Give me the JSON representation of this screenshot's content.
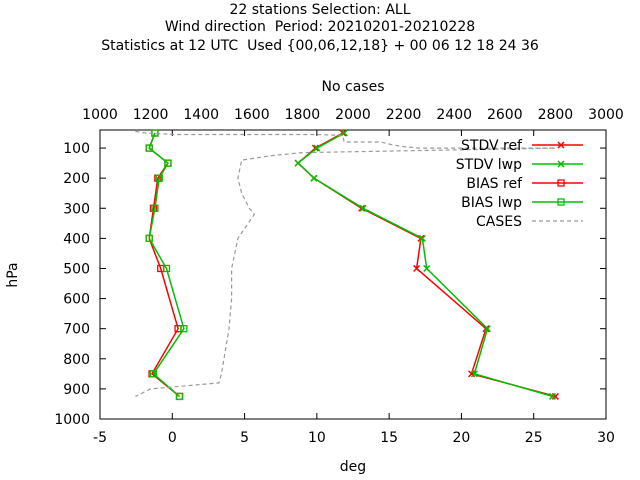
{
  "chart_data": {
    "type": "line",
    "title_lines": [
      "22 stations Selection: ALL",
      "Wind direction  Period: 20210201-20210228",
      "Statistics at 12 UTC  Used {00,06,12,18} + 00 06 12 18 24 36"
    ],
    "xlabel": "deg",
    "ylabel": "hPa",
    "x2label": "No cases",
    "xlim": [
      -5,
      30
    ],
    "ylim": [
      1000,
      40
    ],
    "x2lim": [
      1000,
      3000
    ],
    "xticks": [
      "-5",
      "0",
      "5",
      "10",
      "15",
      "20",
      "25",
      "30"
    ],
    "yticks": [
      "100",
      "200",
      "300",
      "400",
      "500",
      "600",
      "700",
      "800",
      "900",
      "1000"
    ],
    "x2ticks": [
      "1000",
      "1200",
      "1400",
      "1600",
      "1800",
      "2000",
      "2200",
      "2400",
      "2600",
      "2800",
      "3000"
    ],
    "grid": false,
    "legend_position": "top-right",
    "levels": [
      50,
      100,
      150,
      200,
      300,
      400,
      500,
      700,
      850,
      925
    ],
    "series": [
      {
        "name": "STDV ref",
        "color": "#ff0000",
        "marker": "x",
        "axis": "x1",
        "x": [
          11.8,
          9.9,
          8.7,
          9.8,
          13.1,
          17.2,
          16.9,
          21.7,
          20.7,
          26.5
        ],
        "y": [
          50,
          100,
          150,
          200,
          300,
          400,
          500,
          700,
          850,
          925
        ]
      },
      {
        "name": "STDV lwp",
        "color": "#00c000",
        "marker": "x",
        "axis": "x1",
        "x": [
          11.9,
          10.0,
          8.7,
          9.8,
          13.2,
          17.3,
          17.6,
          21.8,
          20.9,
          26.3
        ],
        "y": [
          50,
          100,
          150,
          200,
          300,
          400,
          500,
          700,
          850,
          925
        ]
      },
      {
        "name": "BIAS ref",
        "color": "#ff0000",
        "marker": "square",
        "axis": "x1",
        "x": [
          -1.2,
          -1.6,
          -0.3,
          -1.0,
          -1.3,
          -1.6,
          -0.8,
          0.4,
          -1.4,
          0.5
        ],
        "y": [
          50,
          100,
          150,
          200,
          300,
          400,
          500,
          700,
          850,
          925
        ]
      },
      {
        "name": "BIAS lwp",
        "color": "#00c000",
        "marker": "square",
        "axis": "x1",
        "x": [
          -1.2,
          -1.6,
          -0.3,
          -0.9,
          -1.2,
          -1.6,
          -0.4,
          0.8,
          -1.3,
          0.5
        ],
        "y": [
          50,
          100,
          150,
          200,
          300,
          400,
          500,
          700,
          850,
          925
        ]
      },
      {
        "name": "CASES",
        "color": "#999999",
        "marker": "none",
        "dash": true,
        "axis": "x2",
        "x": [
          1140,
          1180,
          1300,
          1850,
          1960,
          1965,
          2110,
          2160,
          2200,
          2260,
          2500,
          2800,
          1800,
          1680,
          1560,
          1545,
          1560,
          1590,
          1610,
          1545,
          1520,
          1520,
          1510,
          1490,
          1480,
          1470,
          1200,
          1140
        ],
        "y": [
          45,
          50,
          55,
          55,
          58,
          80,
          80,
          90,
          95,
          100,
          100,
          100,
          115,
          125,
          140,
          200,
          250,
          300,
          320,
          400,
          500,
          600,
          700,
          800,
          850,
          880,
          900,
          925
        ]
      }
    ]
  }
}
